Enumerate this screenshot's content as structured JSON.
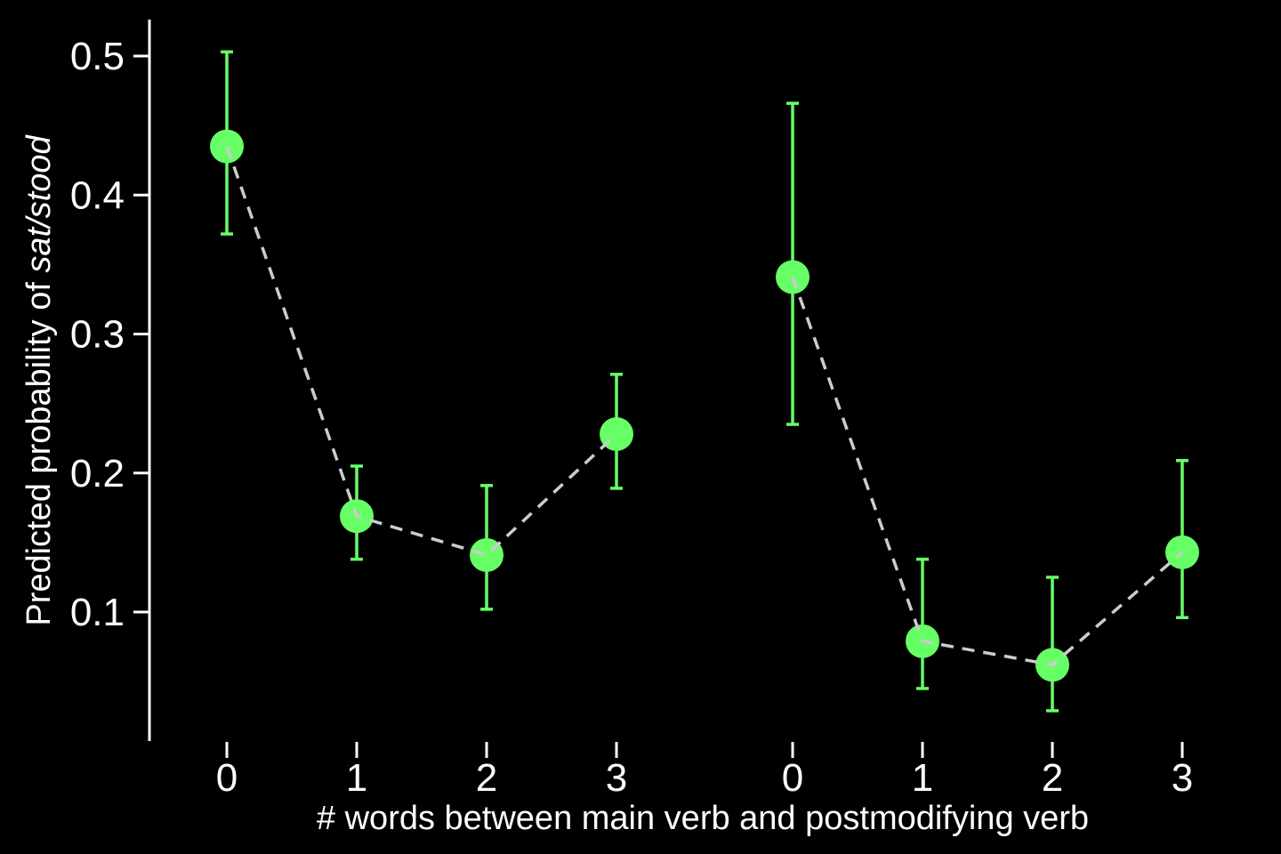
{
  "chart_data": {
    "type": "scatter",
    "xlabel": "# words between main verb and postmodifying verb",
    "ylabel_prefix": "Predicted probability of ",
    "ylabel_emphasis": "sat/stood",
    "ylim": [
      0.01,
      0.52
    ],
    "y_ticks": [
      "0.1",
      "0.2",
      "0.3",
      "0.4",
      "0.5"
    ],
    "x_tick_labels": [
      "0",
      "1",
      "2",
      "3",
      "0",
      "1",
      "2",
      "3"
    ],
    "grid": false,
    "legend": "none",
    "colors": {
      "point": "#66ff66",
      "errorbar": "#66ff66",
      "line": "#cccccc",
      "axis": "#ffffff",
      "background": "#000000"
    },
    "series": [
      {
        "x": [
          "0",
          "1",
          "2",
          "3"
        ],
        "values": [
          0.435,
          0.169,
          0.141,
          0.228
        ],
        "lower": [
          0.372,
          0.138,
          0.102,
          0.189
        ],
        "upper": [
          0.503,
          0.205,
          0.191,
          0.271
        ]
      },
      {
        "x": [
          "0",
          "1",
          "2",
          "3"
        ],
        "values": [
          0.341,
          0.079,
          0.062,
          0.143
        ],
        "lower": [
          0.235,
          0.045,
          0.029,
          0.096
        ],
        "upper": [
          0.466,
          0.138,
          0.125,
          0.209
        ]
      }
    ]
  }
}
